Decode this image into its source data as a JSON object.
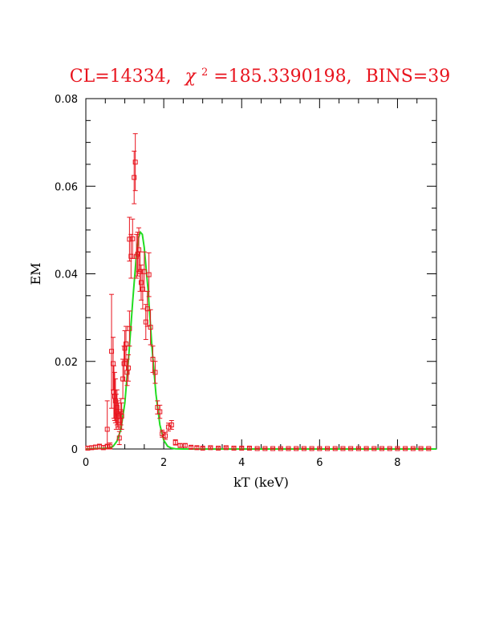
{
  "chart_data": {
    "type": "scatter",
    "title_parts": {
      "cl": "CL=14334,",
      "chi": "χ",
      "chi_exp": "2",
      "chi_rest": "=185.3390198,",
      "bins": "BINS=39"
    },
    "xlabel": "kT (keV)",
    "ylabel": "EM",
    "xlim": [
      0,
      9
    ],
    "ylim": [
      0,
      0.08
    ],
    "x_ticks": [
      0,
      2,
      4,
      6,
      8
    ],
    "x_tick_labels": [
      "0",
      "2",
      "4",
      "6",
      "8"
    ],
    "y_ticks": [
      0,
      0.02,
      0.04,
      0.06,
      0.08
    ],
    "y_tick_labels": [
      "0",
      "0.02",
      "0.04",
      "0.06",
      "0.08"
    ],
    "colors": {
      "data": "#e8141e",
      "model": "#22dd22",
      "axes": "#000000"
    },
    "series": [
      {
        "values": [
          {
            "x": 0.05,
            "y": 0.0002,
            "e": 0.0004
          },
          {
            "x": 0.15,
            "y": 0.0003,
            "e": 0.0004
          },
          {
            "x": 0.25,
            "y": 0.0004,
            "e": 0.0005
          },
          {
            "x": 0.35,
            "y": 0.0005,
            "e": 0.0006
          },
          {
            "x": 0.45,
            "y": 0.0003,
            "e": 0.0005
          },
          {
            "x": 0.55,
            "y": 0.0005,
            "e": 0.0006
          },
          {
            "x": 0.55,
            "y": 0.0045,
            "e": 0.0065
          },
          {
            "x": 0.62,
            "y": 0.0006,
            "e": 0.0008
          },
          {
            "x": 0.66,
            "y": 0.0223,
            "e": 0.013
          },
          {
            "x": 0.7,
            "y": 0.0195,
            "e": 0.006
          },
          {
            "x": 0.72,
            "y": 0.013,
            "e": 0.006
          },
          {
            "x": 0.74,
            "y": 0.012,
            "e": 0.0055
          },
          {
            "x": 0.76,
            "y": 0.011,
            "e": 0.005
          },
          {
            "x": 0.78,
            "y": 0.0085,
            "e": 0.004
          },
          {
            "x": 0.8,
            "y": 0.0095,
            "e": 0.004
          },
          {
            "x": 0.82,
            "y": 0.008,
            "e": 0.003
          },
          {
            "x": 0.84,
            "y": 0.0075,
            "e": 0.003
          },
          {
            "x": 0.86,
            "y": 0.0025,
            "e": 0.0015
          },
          {
            "x": 0.88,
            "y": 0.0065,
            "e": 0.002
          },
          {
            "x": 0.9,
            "y": 0.0085,
            "e": 0.003
          },
          {
            "x": 0.92,
            "y": 0.0075,
            "e": 0.003
          },
          {
            "x": 0.95,
            "y": 0.016,
            "e": 0.0045
          },
          {
            "x": 0.98,
            "y": 0.0195,
            "e": 0.004
          },
          {
            "x": 1.0,
            "y": 0.023,
            "e": 0.004
          },
          {
            "x": 1.03,
            "y": 0.024,
            "e": 0.004
          },
          {
            "x": 1.06,
            "y": 0.0175,
            "e": 0.003
          },
          {
            "x": 1.09,
            "y": 0.0185,
            "e": 0.003
          },
          {
            "x": 1.12,
            "y": 0.0275,
            "e": 0.004
          },
          {
            "x": 1.12,
            "y": 0.0479,
            "e": 0.005
          },
          {
            "x": 1.16,
            "y": 0.044,
            "e": 0.005
          },
          {
            "x": 1.2,
            "y": 0.048,
            "e": 0.0045
          },
          {
            "x": 1.24,
            "y": 0.062,
            "e": 0.006
          },
          {
            "x": 1.27,
            "y": 0.0655,
            "e": 0.0065
          },
          {
            "x": 1.3,
            "y": 0.044,
            "e": 0.005
          },
          {
            "x": 1.33,
            "y": 0.0445,
            "e": 0.005
          },
          {
            "x": 1.36,
            "y": 0.0455,
            "e": 0.005
          },
          {
            "x": 1.39,
            "y": 0.0405,
            "e": 0.0045
          },
          {
            "x": 1.42,
            "y": 0.038,
            "e": 0.004
          },
          {
            "x": 1.46,
            "y": 0.0365,
            "e": 0.0045
          },
          {
            "x": 1.5,
            "y": 0.0405,
            "e": 0.0045
          },
          {
            "x": 1.54,
            "y": 0.029,
            "e": 0.004
          },
          {
            "x": 1.58,
            "y": 0.032,
            "e": 0.004
          },
          {
            "x": 1.62,
            "y": 0.0398,
            "e": 0.005
          },
          {
            "x": 1.66,
            "y": 0.0278,
            "e": 0.004
          },
          {
            "x": 1.72,
            "y": 0.0205,
            "e": 0.003
          },
          {
            "x": 1.78,
            "y": 0.0175,
            "e": 0.0025
          },
          {
            "x": 1.84,
            "y": 0.0095,
            "e": 0.0015
          },
          {
            "x": 1.9,
            "y": 0.0085,
            "e": 0.0015
          },
          {
            "x": 1.96,
            "y": 0.0035,
            "e": 0.0008
          },
          {
            "x": 2.04,
            "y": 0.003,
            "e": 0.0008
          },
          {
            "x": 2.12,
            "y": 0.005,
            "e": 0.0009
          },
          {
            "x": 2.2,
            "y": 0.0055,
            "e": 0.001
          },
          {
            "x": 2.3,
            "y": 0.0015,
            "e": 0.0006
          },
          {
            "x": 2.42,
            "y": 0.0008,
            "e": 0.0004
          },
          {
            "x": 2.55,
            "y": 0.0008,
            "e": 0.0004
          },
          {
            "x": 2.7,
            "y": 0.0004,
            "e": 0.0003
          },
          {
            "x": 2.85,
            "y": 0.0003,
            "e": 0.0003
          },
          {
            "x": 3.0,
            "y": 0.0002,
            "e": 0.0002
          },
          {
            "x": 3.2,
            "y": 0.0003,
            "e": 0.0002
          },
          {
            "x": 3.4,
            "y": 0.0002,
            "e": 0.0002
          },
          {
            "x": 3.6,
            "y": 0.0003,
            "e": 0.0002
          },
          {
            "x": 3.8,
            "y": 0.0002,
            "e": 0.0002
          },
          {
            "x": 4.0,
            "y": 0.0002,
            "e": 0.0002
          },
          {
            "x": 4.2,
            "y": 0.0002,
            "e": 0.0002
          },
          {
            "x": 4.4,
            "y": 0.0001,
            "e": 0.0001
          },
          {
            "x": 4.6,
            "y": 0.0001,
            "e": 0.0001
          },
          {
            "x": 4.8,
            "y": 0.0001,
            "e": 0.0001
          },
          {
            "x": 5.0,
            "y": 0.0001,
            "e": 0.0001
          },
          {
            "x": 5.2,
            "y": 0.0001,
            "e": 0.0001
          },
          {
            "x": 5.4,
            "y": 0.0001,
            "e": 0.0001
          },
          {
            "x": 5.6,
            "y": 0.0001,
            "e": 0.0001
          },
          {
            "x": 5.8,
            "y": 0.0001,
            "e": 0.0001
          },
          {
            "x": 6.0,
            "y": 0.0001,
            "e": 0.0001
          },
          {
            "x": 6.2,
            "y": 0.0001,
            "e": 0.0001
          },
          {
            "x": 6.4,
            "y": 0.0001,
            "e": 0.0001
          },
          {
            "x": 6.6,
            "y": 0.0001,
            "e": 0.0001
          },
          {
            "x": 6.8,
            "y": 0.0001,
            "e": 0.0001
          },
          {
            "x": 7.0,
            "y": 0.0001,
            "e": 0.0001
          },
          {
            "x": 7.2,
            "y": 0.0001,
            "e": 0.0001
          },
          {
            "x": 7.4,
            "y": 0.0001,
            "e": 0.0001
          },
          {
            "x": 7.6,
            "y": 0.0001,
            "e": 0.0001
          },
          {
            "x": 7.8,
            "y": 0.0001,
            "e": 0.0001
          },
          {
            "x": 8.0,
            "y": 0.0001,
            "e": 0.0001
          },
          {
            "x": 8.2,
            "y": 0.0001,
            "e": 0.0001
          },
          {
            "x": 8.4,
            "y": 0.0001,
            "e": 0.0001
          },
          {
            "x": 8.6,
            "y": 0.0001,
            "e": 0.0001
          },
          {
            "x": 8.8,
            "y": 0.0001,
            "e": 0.0001
          }
        ]
      },
      {
        "type": "line",
        "values": [
          {
            "x": 0.0,
            "y": 0.0
          },
          {
            "x": 0.6,
            "y": 0.0002
          },
          {
            "x": 0.7,
            "y": 0.0006
          },
          {
            "x": 0.8,
            "y": 0.0018
          },
          {
            "x": 0.9,
            "y": 0.0045
          },
          {
            "x": 1.0,
            "y": 0.0105
          },
          {
            "x": 1.1,
            "y": 0.021
          },
          {
            "x": 1.2,
            "y": 0.0335
          },
          {
            "x": 1.3,
            "y": 0.0445
          },
          {
            "x": 1.35,
            "y": 0.0482
          },
          {
            "x": 1.4,
            "y": 0.0495
          },
          {
            "x": 1.45,
            "y": 0.049
          },
          {
            "x": 1.5,
            "y": 0.046
          },
          {
            "x": 1.6,
            "y": 0.036
          },
          {
            "x": 1.7,
            "y": 0.023
          },
          {
            "x": 1.8,
            "y": 0.0125
          },
          {
            "x": 1.9,
            "y": 0.0055
          },
          {
            "x": 2.0,
            "y": 0.002
          },
          {
            "x": 2.1,
            "y": 0.0006
          },
          {
            "x": 2.2,
            "y": 0.0002
          },
          {
            "x": 2.3,
            "y": 5e-05
          },
          {
            "x": 2.5,
            "y": 0.0
          },
          {
            "x": 9.0,
            "y": 0.0
          }
        ]
      }
    ]
  }
}
